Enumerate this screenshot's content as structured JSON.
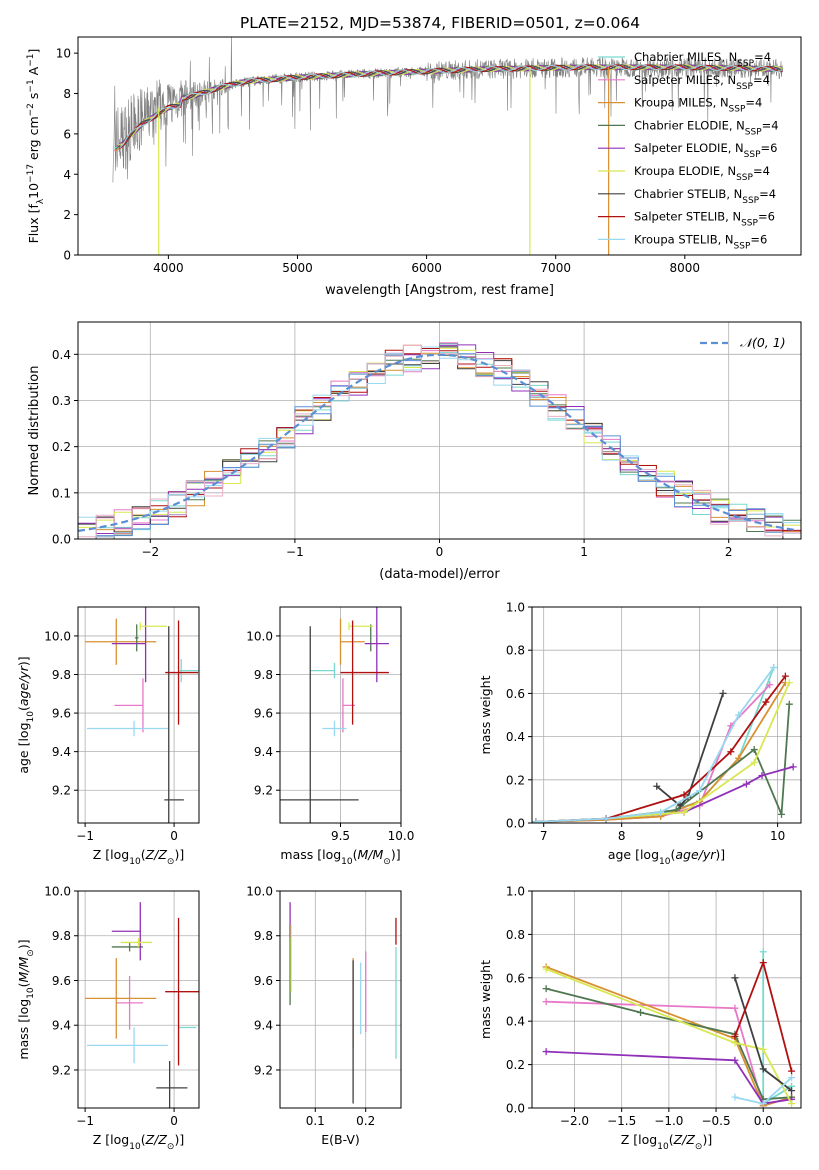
{
  "figure": {
    "title": "PLATE=2152, MJD=53874, FIBERID=0501, z=0.064"
  },
  "colors": {
    "Chabrier MILES": "#78d8d0",
    "Salpeter MILES": "#e878c8",
    "Kroupa MILES": "#d89030",
    "Chabrier ELODIE": "#507850",
    "Salpeter ELODIE": "#9030b8",
    "Kroupa ELODIE": "#d8e850",
    "Chabrier STELIB": "#404040",
    "Salpeter STELIB": "#b01010",
    "Kroupa STELIB": "#98d8f0",
    "data": "#808080",
    "normal": "#5b8fd6",
    "hist_extra_1": "#5b8fd6",
    "hist_extra_2": "#e8b0c8"
  },
  "legend_entries": [
    {
      "name": "Chabrier MILES",
      "n": "4"
    },
    {
      "name": "Salpeter MILES",
      "n": "4"
    },
    {
      "name": "Kroupa MILES",
      "n": "4"
    },
    {
      "name": "Chabrier ELODIE",
      "n": "4"
    },
    {
      "name": "Salpeter ELODIE",
      "n": "6"
    },
    {
      "name": "Kroupa ELODIE",
      "n": "4"
    },
    {
      "name": "Chabrier STELIB",
      "n": "4"
    },
    {
      "name": "Salpeter STELIB",
      "n": "6"
    },
    {
      "name": "Kroupa STELIB",
      "n": "6"
    }
  ],
  "chart_data": [
    {
      "id": "spectrum",
      "type": "line",
      "title": "PLATE=2152, MJD=53874, FIBERID=0501, z=0.064",
      "xlabel": "wavelength [Angstrom, rest frame]",
      "ylabel": "Flux [f_λ10⁻¹⁷ erg cm⁻² s⁻¹ A⁻¹]",
      "xlim": [
        3300,
        8900
      ],
      "ylim": [
        0,
        10.8
      ],
      "xticks": [
        4000,
        5000,
        6000,
        7000,
        8000
      ],
      "yticks": [
        0,
        2,
        4,
        6,
        8,
        10
      ],
      "grid": false,
      "legend_position": "top-right",
      "continuum_anchor_points": {
        "x": [
          3570,
          3650,
          3700,
          3800,
          3900,
          4000,
          4200,
          4400,
          4600,
          4800,
          5000,
          5300,
          5600,
          6000,
          6400,
          6800,
          7200,
          7600,
          8000,
          8400,
          8800
        ],
        "y": [
          5.5,
          5.8,
          6.2,
          6.8,
          7.2,
          7.6,
          7.9,
          8.3,
          8.6,
          8.7,
          8.8,
          8.9,
          9.0,
          9.1,
          9.2,
          9.25,
          9.3,
          9.3,
          9.3,
          9.25,
          9.2
        ]
      }
    },
    {
      "id": "residuals",
      "type": "bar",
      "xlabel": "(data-model)/error",
      "ylabel": "Normed distribution",
      "xlim": [
        -2.5,
        2.5
      ],
      "ylim": [
        0,
        0.47
      ],
      "xticks": [
        -2,
        -1,
        0,
        1,
        2
      ],
      "yticks": [
        0.0,
        0.1,
        0.2,
        0.3,
        0.4
      ],
      "grid": true,
      "legend_position": "top-right",
      "legend_label": "𝒩(0, 1)",
      "bin_width": 0.125
    },
    {
      "id": "z_age",
      "type": "scatter",
      "xlabel": "Z [log₁₀(Z/Z⊙)]",
      "ylabel": "age  [log₁₀(age/yr)]",
      "xlim": [
        -1.08,
        0.28
      ],
      "ylim": [
        9.03,
        10.15
      ],
      "xticks": [
        -1,
        0
      ],
      "yticks": [
        9.2,
        9.4,
        9.6,
        9.8,
        10.0
      ],
      "grid": true,
      "points": [
        {
          "series": "Chabrier MILES",
          "x": 0.08,
          "y": 9.82,
          "xerr": [
            0.02,
            0.2
          ],
          "yerr": [
            0.06,
            0.06
          ]
        },
        {
          "series": "Salpeter MILES",
          "x": -0.35,
          "y": 9.64,
          "xerr": [
            0.32,
            0.0
          ],
          "yerr": [
            0.14,
            0.14
          ]
        },
        {
          "series": "Kroupa MILES",
          "x": -0.65,
          "y": 9.97,
          "xerr": [
            0.35,
            0.45
          ],
          "yerr": [
            0.12,
            0.12
          ]
        },
        {
          "series": "Chabrier ELODIE",
          "x": -0.42,
          "y": 9.99,
          "xerr": [
            0.02,
            0.02
          ],
          "yerr": [
            0.07,
            0.07
          ]
        },
        {
          "series": "Salpeter ELODIE",
          "x": -0.32,
          "y": 9.96,
          "xerr": [
            0.38,
            0.0
          ],
          "yerr": [
            0.2,
            0.2
          ]
        },
        {
          "series": "Kroupa ELODIE",
          "x": -0.38,
          "y": 10.05,
          "xerr": [
            0.0,
            0.3
          ],
          "yerr": [
            0.02,
            0.02
          ]
        },
        {
          "series": "Chabrier STELIB",
          "x": -0.06,
          "y": 9.15,
          "xerr": [
            0.05,
            0.17
          ],
          "yerr": [
            0.9,
            0.9
          ]
        },
        {
          "series": "Salpeter STELIB",
          "x": 0.05,
          "y": 9.81,
          "xerr": [
            0.15,
            0.22
          ],
          "yerr": [
            0.27,
            0.27
          ]
        },
        {
          "series": "Kroupa STELIB",
          "x": -0.45,
          "y": 9.52,
          "xerr": [
            0.53,
            0.38
          ],
          "yerr": [
            0.04,
            0.04
          ]
        }
      ]
    },
    {
      "id": "mass_age",
      "type": "scatter",
      "xlabel": "mass [log₁₀(M/M⊙)]",
      "xlim": [
        9.0,
        10.0
      ],
      "ylim": [
        9.03,
        10.15
      ],
      "xticks": [
        9.5,
        10.0
      ],
      "yticks": [
        9.2,
        9.4,
        9.6,
        9.8,
        10.0
      ],
      "grid": true,
      "points": [
        {
          "series": "Chabrier MILES",
          "x": 9.45,
          "y": 9.82,
          "xerr": [
            0.2,
            0.0
          ],
          "yerr": [
            0.04,
            0.04
          ]
        },
        {
          "series": "Salpeter MILES",
          "x": 9.52,
          "y": 9.64,
          "xerr": [
            0.0,
            0.1
          ],
          "yerr": [
            0.14,
            0.14
          ]
        },
        {
          "series": "Kroupa MILES",
          "x": 9.5,
          "y": 9.97,
          "xerr": [
            0.0,
            0.2
          ],
          "yerr": [
            0.12,
            0.12
          ]
        },
        {
          "series": "Chabrier ELODIE",
          "x": 9.75,
          "y": 9.99,
          "xerr": [
            0.0,
            0.0
          ],
          "yerr": [
            0.07,
            0.07
          ]
        },
        {
          "series": "Salpeter ELODIE",
          "x": 9.8,
          "y": 9.96,
          "xerr": [
            0.1,
            0.1
          ],
          "yerr": [
            0.2,
            0.2
          ]
        },
        {
          "series": "Kroupa ELODIE",
          "x": 9.57,
          "y": 10.05,
          "xerr": [
            0.0,
            0.2
          ],
          "yerr": [
            0.02,
            0.02
          ]
        },
        {
          "series": "Chabrier STELIB",
          "x": 9.25,
          "y": 9.15,
          "xerr": [
            0.3,
            0.4
          ],
          "yerr": [
            0.9,
            0.9
          ]
        },
        {
          "series": "Salpeter STELIB",
          "x": 9.6,
          "y": 9.81,
          "xerr": [
            0.1,
            0.3
          ],
          "yerr": [
            0.27,
            0.27
          ]
        },
        {
          "series": "Kroupa STELIB",
          "x": 9.45,
          "y": 9.52,
          "xerr": [
            0.1,
            0.1
          ],
          "yerr": [
            0.04,
            0.04
          ]
        }
      ]
    },
    {
      "id": "weights_age",
      "type": "line",
      "xlabel": "age  [log₁₀(age/yr)]",
      "ylabel": "mass weight",
      "xlim": [
        6.85,
        10.3
      ],
      "ylim": [
        0.0,
        1.0
      ],
      "xticks": [
        7,
        8,
        9,
        10
      ],
      "yticks": [
        0.0,
        0.2,
        0.4,
        0.6,
        0.8,
        1.0
      ],
      "grid": true,
      "series": [
        {
          "name": "Chabrier MILES",
          "x": [
            6.9,
            7.8,
            8.5,
            9.0,
            9.5,
            9.95
          ],
          "y": [
            0.005,
            0.015,
            0.04,
            0.1,
            0.3,
            0.72
          ]
        },
        {
          "name": "Salpeter MILES",
          "x": [
            6.9,
            7.8,
            8.5,
            9.0,
            9.4,
            9.9
          ],
          "y": [
            0.005,
            0.015,
            0.03,
            0.08,
            0.45,
            0.64
          ]
        },
        {
          "name": "Kroupa MILES",
          "x": [
            6.9,
            7.8,
            8.5,
            9.0,
            9.5,
            10.1
          ],
          "y": [
            0.005,
            0.015,
            0.03,
            0.1,
            0.3,
            0.65
          ]
        },
        {
          "name": "Chabrier ELODIE",
          "x": [
            6.9,
            7.8,
            8.7,
            9.7,
            10.05,
            10.15
          ],
          "y": [
            0.005,
            0.02,
            0.06,
            0.34,
            0.04,
            0.55
          ]
        },
        {
          "name": "Salpeter ELODIE",
          "x": [
            6.9,
            7.8,
            8.8,
            9.6,
            9.8,
            10.2
          ],
          "y": [
            0.005,
            0.02,
            0.05,
            0.18,
            0.22,
            0.26
          ]
        },
        {
          "name": "Kroupa ELODIE",
          "x": [
            6.9,
            7.8,
            8.8,
            9.7,
            10.15
          ],
          "y": [
            0.005,
            0.02,
            0.05,
            0.28,
            0.65
          ]
        },
        {
          "name": "Chabrier STELIB",
          "x": [
            8.45,
            8.75,
            8.85,
            9.3
          ],
          "y": [
            0.17,
            0.08,
            0.12,
            0.6
          ]
        },
        {
          "name": "Salpeter STELIB",
          "x": [
            6.9,
            7.8,
            8.8,
            9.4,
            9.85,
            10.1
          ],
          "y": [
            0.005,
            0.02,
            0.13,
            0.33,
            0.56,
            0.68
          ]
        },
        {
          "name": "Kroupa STELIB",
          "x": [
            6.9,
            7.8,
            8.5,
            9.0,
            9.5,
            9.95
          ],
          "y": [
            0.005,
            0.02,
            0.05,
            0.15,
            0.5,
            0.72
          ]
        }
      ]
    },
    {
      "id": "z_mass",
      "type": "scatter",
      "xlabel": "Z [log₁₀(Z/Z⊙)]",
      "ylabel": "mass [log₁₀(M/M⊙)]",
      "xlim": [
        -1.08,
        0.28
      ],
      "ylim": [
        9.03,
        10.0
      ],
      "xticks": [
        -1,
        0
      ],
      "yticks": [
        9.2,
        9.4,
        9.6,
        9.8,
        10.0
      ],
      "grid": true,
      "points": [
        {
          "series": "Chabrier MILES",
          "x": 0.05,
          "y": 9.39,
          "xerr": [
            0.0,
            0.2
          ],
          "yerr": [
            0.15,
            0.15
          ]
        },
        {
          "series": "Salpeter MILES",
          "x": -0.5,
          "y": 9.5,
          "xerr": [
            0.15,
            0.15
          ],
          "yerr": [
            0.12,
            0.12
          ]
        },
        {
          "series": "Kroupa MILES",
          "x": -0.65,
          "y": 9.52,
          "xerr": [
            0.35,
            0.45
          ],
          "yerr": [
            0.18,
            0.18
          ]
        },
        {
          "series": "Chabrier ELODIE",
          "x": -0.5,
          "y": 9.75,
          "xerr": [
            0.2,
            0.15
          ],
          "yerr": [
            0.02,
            0.02
          ]
        },
        {
          "series": "Salpeter ELODIE",
          "x": -0.38,
          "y": 9.82,
          "xerr": [
            0.32,
            0.0
          ],
          "yerr": [
            0.13,
            0.13
          ]
        },
        {
          "series": "Kroupa ELODIE",
          "x": -0.4,
          "y": 9.77,
          "xerr": [
            0.2,
            0.15
          ],
          "yerr": [
            0.02,
            0.02
          ]
        },
        {
          "series": "Chabrier STELIB",
          "x": -0.05,
          "y": 9.12,
          "xerr": [
            0.15,
            0.2
          ],
          "yerr": [
            0.12,
            0.12
          ]
        },
        {
          "series": "Salpeter STELIB",
          "x": 0.05,
          "y": 9.55,
          "xerr": [
            0.15,
            0.25
          ],
          "yerr": [
            0.33,
            0.33
          ]
        },
        {
          "series": "Kroupa STELIB",
          "x": -0.45,
          "y": 9.31,
          "xerr": [
            0.53,
            0.38
          ],
          "yerr": [
            0.08,
            0.08
          ]
        }
      ]
    },
    {
      "id": "ebv_mass",
      "type": "scatter",
      "xlabel": "E(B-V)",
      "xlim": [
        0.03,
        0.27
      ],
      "ylim": [
        9.03,
        10.0
      ],
      "xticks": [
        0.1,
        0.2
      ],
      "yticks": [
        9.2,
        9.4,
        9.6,
        9.8,
        10.0
      ],
      "grid": true,
      "points": [
        {
          "series": "Chabrier MILES",
          "x": 0.26,
          "y": 9.5,
          "yerr": [
            0.25,
            0.25
          ]
        },
        {
          "series": "Salpeter MILES",
          "x": 0.2,
          "y": 9.55,
          "yerr": [
            0.18,
            0.18
          ]
        },
        {
          "series": "Kroupa MILES",
          "x": 0.175,
          "y": 9.5,
          "yerr": [
            0.2,
            0.2
          ]
        },
        {
          "series": "Chabrier ELODIE",
          "x": 0.05,
          "y": 9.67,
          "yerr": [
            0.18,
            0.18
          ]
        },
        {
          "series": "Salpeter ELODIE",
          "x": 0.05,
          "y": 9.87,
          "yerr": [
            0.08,
            0.08
          ]
        },
        {
          "series": "Kroupa ELODIE",
          "x": 0.052,
          "y": 9.7,
          "yerr": [
            0.15,
            0.15
          ]
        },
        {
          "series": "Chabrier STELIB",
          "x": 0.175,
          "y": 9.37,
          "yerr": [
            0.32,
            0.32
          ]
        },
        {
          "series": "Salpeter STELIB",
          "x": 0.26,
          "y": 9.82,
          "yerr": [
            0.06,
            0.06
          ]
        },
        {
          "series": "Kroupa STELIB",
          "x": 0.19,
          "y": 9.52,
          "yerr": [
            0.16,
            0.16
          ]
        }
      ]
    },
    {
      "id": "weights_z",
      "type": "line",
      "xlabel": "Z [log₁₀(Z/Z⊙)]",
      "ylabel": "mass weight",
      "xlim": [
        -2.45,
        0.4
      ],
      "ylim": [
        0.0,
        1.0
      ],
      "xticks": [
        -2.0,
        -1.5,
        -1.0,
        -0.5,
        0.0
      ],
      "yticks": [
        0.0,
        0.2,
        0.4,
        0.6,
        0.8,
        1.0
      ],
      "grid": true,
      "series": [
        {
          "name": "Chabrier MILES",
          "x": [
            0.0,
            0.0,
            0.3
          ],
          "y": [
            0.72,
            0.02,
            0.1
          ]
        },
        {
          "name": "Salpeter MILES",
          "x": [
            -2.3,
            -0.3,
            0.0,
            0.3
          ],
          "y": [
            0.49,
            0.46,
            0.01,
            0.05
          ]
        },
        {
          "name": "Kroupa MILES",
          "x": [
            -2.3,
            -0.3,
            0.0,
            0.3
          ],
          "y": [
            0.65,
            0.32,
            0.01,
            0.05
          ]
        },
        {
          "name": "Chabrier ELODIE",
          "x": [
            -2.3,
            -1.3,
            -0.3,
            0.0,
            0.3
          ],
          "y": [
            0.55,
            0.44,
            0.34,
            0.04,
            0.05
          ]
        },
        {
          "name": "Salpeter ELODIE",
          "x": [
            -2.3,
            -0.3,
            0.0,
            0.3
          ],
          "y": [
            0.26,
            0.22,
            0.02,
            0.04
          ]
        },
        {
          "name": "Kroupa ELODIE",
          "x": [
            -2.3,
            -0.3,
            0.0,
            0.3
          ],
          "y": [
            0.64,
            0.3,
            0.27,
            0.02
          ]
        },
        {
          "name": "Chabrier STELIB",
          "x": [
            -0.3,
            0.0,
            0.3
          ],
          "y": [
            0.6,
            0.18,
            0.08
          ]
        },
        {
          "name": "Salpeter STELIB",
          "x": [
            -0.3,
            0.0,
            0.3
          ],
          "y": [
            0.33,
            0.67,
            0.17
          ]
        },
        {
          "name": "Kroupa STELIB",
          "x": [
            -0.3,
            0.0,
            0.3
          ],
          "y": [
            0.05,
            0.02,
            0.14
          ]
        }
      ]
    }
  ]
}
